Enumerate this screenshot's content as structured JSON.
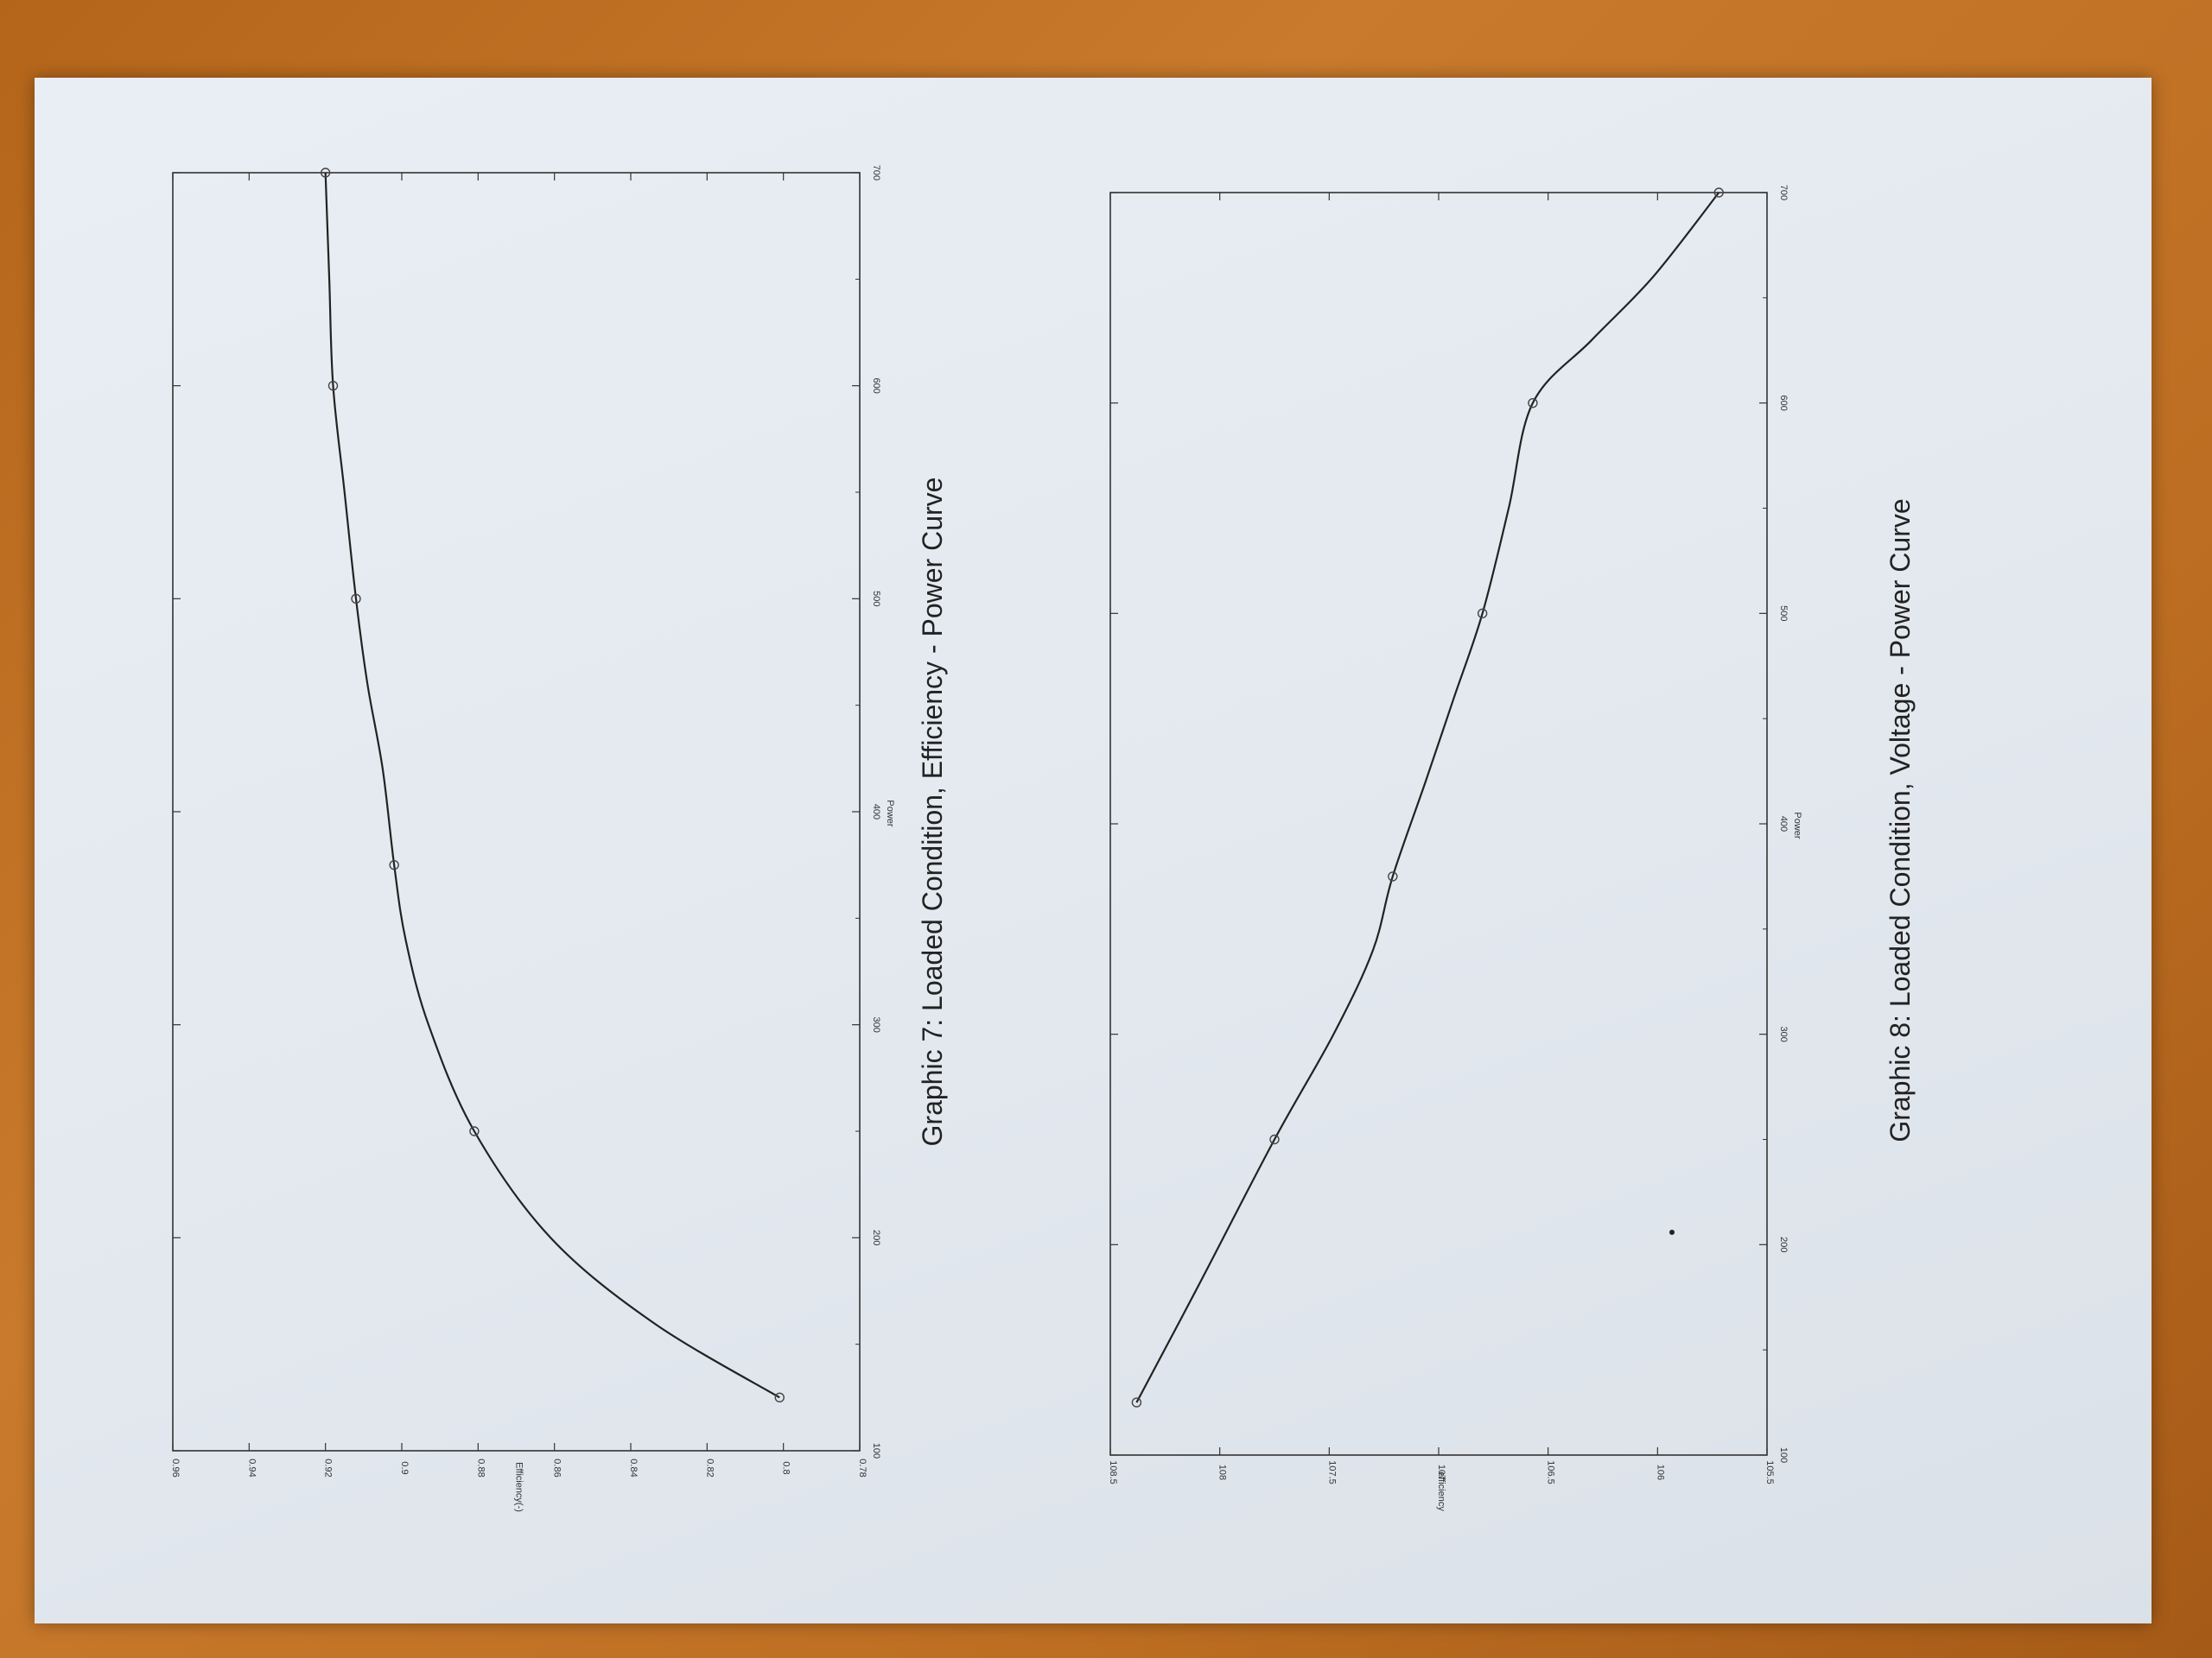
{
  "chart_data": [
    {
      "type": "line",
      "title": "Graphic 7: Loaded Condition, Efficiency - Power Curve",
      "xlabel": "Power",
      "ylabel": "Efficiency(-)",
      "xlim": [
        100,
        700
      ],
      "ylim": [
        0.78,
        0.96
      ],
      "x_ticks": [
        "100",
        "200",
        "300",
        "400",
        "500",
        "600",
        "700"
      ],
      "y_ticks": [
        "0.78",
        "0.8",
        "0.82",
        "0.84",
        "0.86",
        "0.88",
        "0.9",
        "0.92",
        "0.94",
        "0.96"
      ],
      "grid": false,
      "series": [
        {
          "x": [
            125,
            250,
            375,
            500,
            600,
            700
          ],
          "y": [
            0.801,
            0.881,
            0.902,
            0.912,
            0.918,
            0.92
          ]
        }
      ],
      "curve": {
        "x": [
          125,
          160,
          200,
          250,
          300,
          340,
          375,
          420,
          460,
          500,
          550,
          600,
          650,
          700
        ],
        "y": [
          0.801,
          0.834,
          0.861,
          0.881,
          0.893,
          0.899,
          0.902,
          0.905,
          0.909,
          0.912,
          0.915,
          0.918,
          0.919,
          0.92
        ]
      }
    },
    {
      "type": "line",
      "title": "Graphic 8: Loaded Condition, Voltage - Power Curve",
      "xlabel": "Power",
      "ylabel": "efficiency",
      "xlim": [
        100,
        700
      ],
      "ylim": [
        105.5,
        108.5
      ],
      "x_ticks": [
        "100",
        "200",
        "300",
        "400",
        "500",
        "600",
        "700"
      ],
      "y_ticks": [
        "105.5",
        "106",
        "106.5",
        "107",
        "107.5",
        "108",
        "108.5"
      ],
      "grid": false,
      "series": [
        {
          "x": [
            125,
            250,
            375,
            500,
            600,
            700
          ],
          "y": [
            108.38,
            107.75,
            107.21,
            106.8,
            106.57,
            105.72
          ]
        }
      ],
      "curve": {
        "x": [
          125,
          180,
          250,
          300,
          340,
          375,
          420,
          460,
          500,
          550,
          600,
          630,
          660,
          700
        ],
        "y": [
          108.38,
          108.1,
          107.75,
          107.48,
          107.3,
          107.21,
          107.06,
          106.93,
          106.8,
          106.68,
          106.57,
          106.3,
          106.02,
          105.72
        ]
      }
    }
  ]
}
